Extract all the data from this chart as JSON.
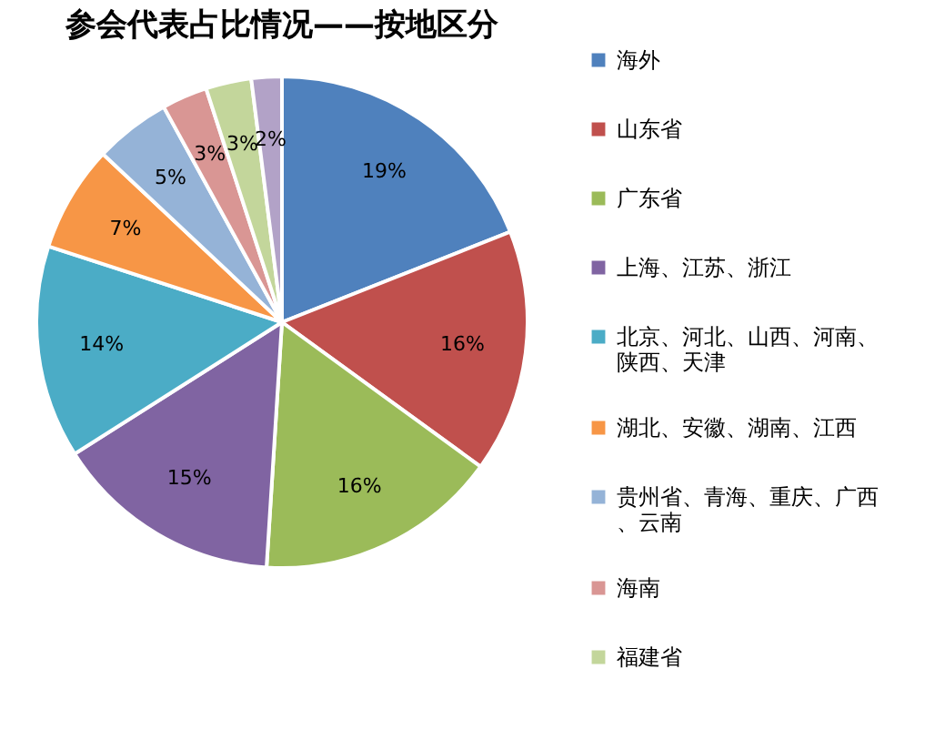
{
  "chart_data": {
    "type": "pie",
    "title": "参会代表占比情况——按地区分",
    "categories": [
      "海外",
      "山东省",
      "广东省",
      "上海、江苏、浙江",
      "北京、河北、山西、河南、陕西、天津",
      "湖北、安徽、湖南、江西",
      "贵州省、青海、重庆、广西、云南",
      "海南",
      "福建省",
      null
    ],
    "values": [
      19,
      16,
      16,
      15,
      14,
      7,
      5,
      3,
      3,
      2
    ],
    "colors": [
      "#4f81bd",
      "#c0504d",
      "#9bbb59",
      "#8064a2",
      "#4bacc6",
      "#f79646",
      "#95b3d7",
      "#d99694",
      "#c3d69b",
      "#b2a2c7"
    ],
    "value_labels": [
      "19%",
      "16%",
      "16%",
      "15%",
      "14%",
      "7%",
      "5%",
      "3%",
      "3%",
      "2%"
    ],
    "legend": "right"
  }
}
